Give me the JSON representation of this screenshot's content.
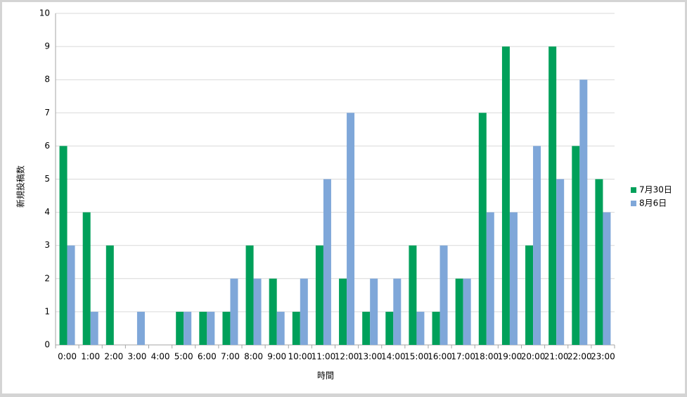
{
  "chart_data": {
    "type": "bar",
    "y_label": "新規投稿数",
    "x_label": "時間",
    "categories": [
      "0:00",
      "1:00",
      "2:00",
      "3:00",
      "4:00",
      "5:00",
      "6:00",
      "7:00",
      "8:00",
      "9:00",
      "10:00",
      "11:00",
      "12:00",
      "13:00",
      "14:00",
      "15:00",
      "16:00",
      "17:00",
      "18:00",
      "19:00",
      "20:00",
      "21:00",
      "22:00",
      "23:00"
    ],
    "series": [
      {
        "name": "7月30日",
        "color": "#00a05a",
        "values": [
          6,
          4,
          3,
          0,
          0,
          1,
          1,
          1,
          3,
          2,
          1,
          3,
          2,
          1,
          1,
          3,
          1,
          2,
          7,
          9,
          3,
          9,
          6,
          5
        ]
      },
      {
        "name": "8月6日",
        "color": "#7fa7d9",
        "values": [
          3,
          1,
          0,
          1,
          0,
          1,
          1,
          2,
          2,
          1,
          2,
          5,
          7,
          2,
          2,
          1,
          3,
          2,
          4,
          4,
          6,
          5,
          8,
          4
        ]
      }
    ],
    "ylim": [
      0,
      10
    ],
    "yticks": [
      0,
      1,
      2,
      3,
      4,
      5,
      6,
      7,
      8,
      9,
      10
    ],
    "grid": true,
    "legend": "right"
  }
}
